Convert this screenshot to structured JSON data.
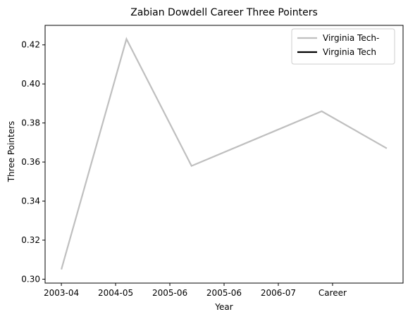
{
  "chart_data": {
    "type": "line",
    "title": "Zabian Dowdell Career Three Pointers",
    "xlabel": "Year",
    "ylabel": "Three Pointers",
    "categories": [
      "2003-04",
      "2004-05",
      "2005-06",
      "2005-06",
      "2006-07",
      "Career"
    ],
    "ylim": [
      0.298,
      0.43
    ],
    "yticks": [
      0.3,
      0.32,
      0.34,
      0.36,
      0.38,
      0.4,
      0.42
    ],
    "ytick_labels": [
      "0.30",
      "0.32",
      "0.34",
      "0.36",
      "0.38",
      "0.40",
      "0.42"
    ],
    "grid": false,
    "legend_position": "top-right",
    "series": [
      {
        "name": "Virginia Tech-",
        "color": "#bfbfbf",
        "x": [
          0,
          1,
          2,
          3,
          4,
          5
        ],
        "values": [
          0.305,
          0.423,
          0.358,
          0.372,
          0.386,
          0.367
        ]
      },
      {
        "name": "Virginia Tech",
        "color": "#000000",
        "x": [],
        "values": []
      }
    ],
    "x_tick_positions": [
      0,
      0.8333,
      1.6667,
      2.5,
      3.3333,
      4.1667
    ]
  }
}
